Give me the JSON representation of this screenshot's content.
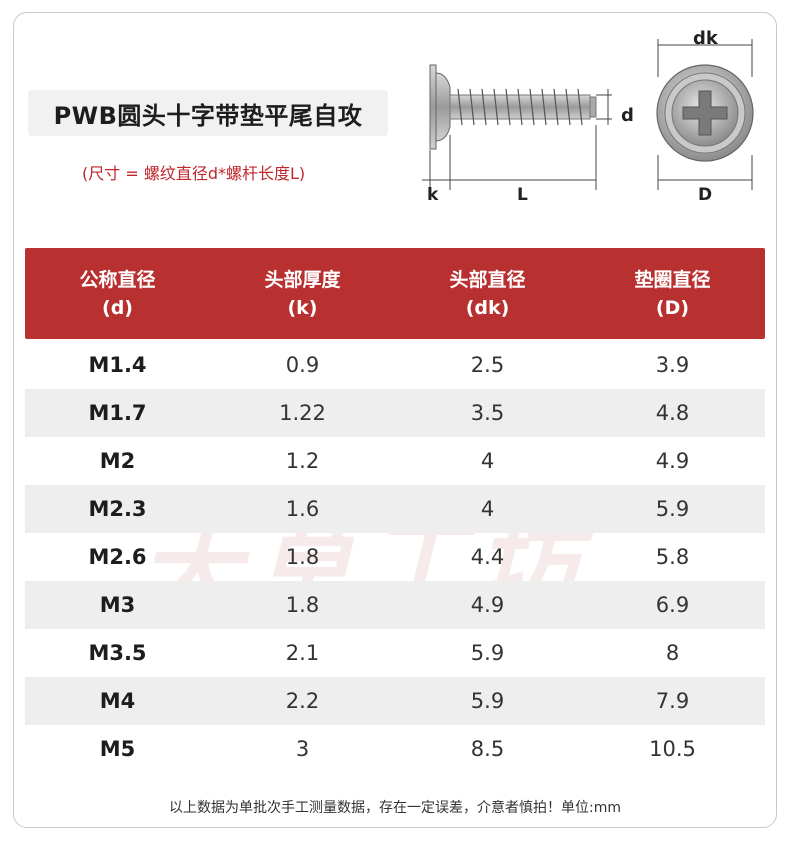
{
  "title": "PWB圆头十字带垫平尾自攻",
  "subtitle": "(尺寸 = 螺纹直径d*螺杆长度L)",
  "diagram": {
    "labels": {
      "dk": "dk",
      "d": "d",
      "k": "k",
      "L": "L",
      "D": "D"
    }
  },
  "watermark": "天草工坊",
  "table": {
    "headers": [
      {
        "name": "公称直径",
        "symbol": "(d)"
      },
      {
        "name": "头部厚度",
        "symbol": "(k)"
      },
      {
        "name": "头部直径",
        "symbol": "(dk)"
      },
      {
        "name": "垫圈直径",
        "symbol": "(D)"
      }
    ],
    "rows": [
      [
        "M1.4",
        "0.9",
        "2.5",
        "3.9"
      ],
      [
        "M1.7",
        "1.22",
        "3.5",
        "4.8"
      ],
      [
        "M2",
        "1.2",
        "4",
        "4.9"
      ],
      [
        "M2.3",
        "1.6",
        "4",
        "5.9"
      ],
      [
        "M2.6",
        "1.8",
        "4.4",
        "5.8"
      ],
      [
        "M3",
        "1.8",
        "4.9",
        "6.9"
      ],
      [
        "M3.5",
        "2.1",
        "5.9",
        "8"
      ],
      [
        "M4",
        "2.2",
        "5.9",
        "7.9"
      ],
      [
        "M5",
        "3",
        "8.5",
        "10.5"
      ]
    ]
  },
  "footer": "以上数据为单批次手工测量数据，存在一定误差，介意者慎拍！单位:mm",
  "colors": {
    "header_bg": "#b8302f",
    "accent_text": "#c0272d",
    "alt_row": "#eeeeee"
  }
}
